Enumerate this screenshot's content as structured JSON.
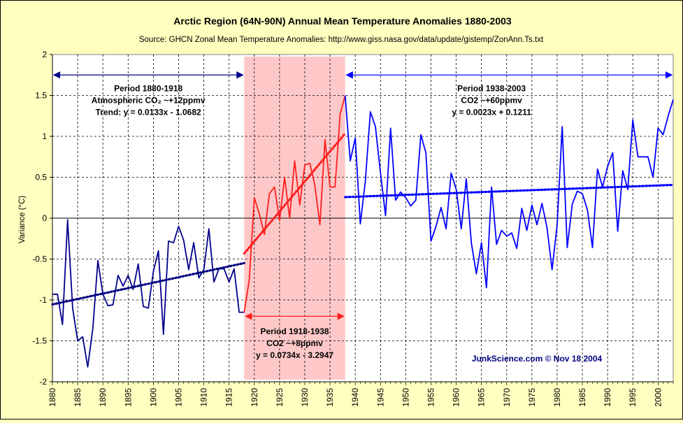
{
  "chart_data": {
    "type": "line",
    "title": "Arctic Region (64N-90N) Annual Mean Temperature Anomalies 1880-2003",
    "subtitle": "Source: GHCN Zonal Mean Temperature Anomalies: http://www.giss.nasa.gov/data/update/gistemp/ZonAnn.Ts.txt",
    "ylabel": "Variance (°C)",
    "xlabel": "",
    "xlim": [
      1880,
      2003
    ],
    "ylim": [
      -2,
      2
    ],
    "x_ticks": [
      1880,
      1885,
      1890,
      1895,
      1900,
      1905,
      1910,
      1915,
      1920,
      1925,
      1930,
      1935,
      1940,
      1945,
      1950,
      1955,
      1960,
      1965,
      1970,
      1975,
      1980,
      1985,
      1990,
      1995,
      2000
    ],
    "y_ticks": [
      -2,
      -1.5,
      -1,
      -0.5,
      0,
      0.5,
      1,
      1.5,
      2
    ],
    "y_tick_labels": [
      "-2",
      "-1.5",
      "-1",
      "-0.5",
      "0",
      "0.5",
      "1",
      "1.5",
      "2"
    ],
    "grid": true,
    "highlight_period": {
      "start": 1918,
      "end": 1938,
      "color": "#ffc8c8"
    },
    "series": [
      {
        "color": "#00008b",
        "x": [
          1880,
          1881,
          1882,
          1883,
          1884,
          1885,
          1886,
          1887,
          1888,
          1889,
          1890,
          1891,
          1892,
          1893,
          1894,
          1895,
          1896,
          1897,
          1898,
          1899,
          1900,
          1901,
          1902,
          1903,
          1904,
          1905,
          1906,
          1907,
          1908,
          1909,
          1910,
          1911,
          1912,
          1913,
          1914,
          1915,
          1916,
          1917,
          1918
        ],
        "y": [
          -0.93,
          -0.93,
          -1.3,
          -0.02,
          -1.1,
          -1.5,
          -1.45,
          -1.82,
          -1.35,
          -0.52,
          -0.93,
          -1.07,
          -1.06,
          -0.7,
          -0.83,
          -0.7,
          -0.87,
          -0.56,
          -1.08,
          -1.1,
          -0.65,
          -0.4,
          -1.42,
          -0.28,
          -0.3,
          -0.1,
          -0.27,
          -0.63,
          -0.3,
          -0.73,
          -0.63,
          -0.13,
          -0.78,
          -0.62,
          -0.62,
          -0.78,
          -0.62,
          -1.15,
          -1.15
        ]
      },
      {
        "color": "#ff2020",
        "x": [
          1918,
          1919,
          1920,
          1921,
          1922,
          1923,
          1924,
          1925,
          1926,
          1927,
          1928,
          1929,
          1930,
          1931,
          1932,
          1933,
          1934,
          1935,
          1936,
          1937,
          1938
        ],
        "y": [
          -1.15,
          -0.75,
          0.25,
          0.05,
          -0.2,
          0.3,
          0.38,
          -0.03,
          0.5,
          0.0,
          0.7,
          0.16,
          0.65,
          0.67,
          0.4,
          -0.08,
          0.96,
          0.38,
          0.38,
          1.27,
          1.5
        ]
      },
      {
        "color": "#0000ff",
        "x": [
          1938,
          1939,
          1940,
          1941,
          1942,
          1943,
          1944,
          1945,
          1946,
          1947,
          1948,
          1949,
          1950,
          1951,
          1952,
          1953,
          1954,
          1955,
          1956,
          1957,
          1958,
          1959,
          1960,
          1961,
          1962,
          1963,
          1964,
          1965,
          1966,
          1967,
          1968,
          1969,
          1970,
          1971,
          1972,
          1973,
          1974,
          1975,
          1976,
          1977,
          1978,
          1979,
          1980,
          1981,
          1982,
          1983,
          1984,
          1985,
          1986,
          1987,
          1988,
          1989,
          1990,
          1991,
          1992,
          1993,
          1994,
          1995,
          1996,
          1997,
          1998,
          1999,
          2000,
          2001,
          2002,
          2003
        ],
        "y": [
          1.5,
          0.7,
          0.98,
          -0.07,
          0.45,
          1.3,
          1.12,
          0.55,
          0.03,
          1.1,
          0.22,
          0.32,
          0.25,
          0.15,
          0.22,
          1.02,
          0.8,
          -0.28,
          -0.1,
          0.13,
          -0.13,
          0.55,
          0.35,
          -0.13,
          0.48,
          -0.3,
          -0.68,
          -0.3,
          -0.85,
          0.38,
          -0.32,
          -0.15,
          -0.22,
          -0.18,
          -0.37,
          0.12,
          -0.15,
          0.16,
          -0.08,
          0.18,
          -0.12,
          -0.63,
          -0.08,
          1.12,
          -0.36,
          0.17,
          0.33,
          0.3,
          0.1,
          -0.36,
          0.6,
          0.38,
          0.63,
          0.8,
          -0.16,
          0.58,
          0.35,
          1.2,
          0.75,
          0.75,
          0.75,
          0.5,
          1.1,
          1.02,
          1.25,
          1.45
        ]
      }
    ],
    "trendlines": [
      {
        "period": "1880-1918",
        "slope": 0.0133,
        "intercept": -1.0682,
        "x_start": 1880,
        "x_end": 1918,
        "color": "#000080"
      },
      {
        "period": "1918-1938",
        "slope": 0.0734,
        "intercept": -3.2947,
        "x_start": 1918,
        "x_end": 1938,
        "color": "#ff2020"
      },
      {
        "period": "1938-2003",
        "slope": 0.0023,
        "intercept": 0.1211,
        "x_start": 1938,
        "x_end": 2003,
        "color": "#0000ff"
      }
    ],
    "annotations": [
      {
        "lines": [
          "Period 1880-1918",
          "Atmospheric CO₂ ~+12ppmv",
          "Trend: y = 0.0133x - 1.0682"
        ],
        "color": "#000000",
        "arrow_from": 1880,
        "arrow_to": 1918,
        "arrow_y": 1.75,
        "arrow_color": "#00008b",
        "text_x": 1899,
        "text_y": 1.55
      },
      {
        "lines": [
          "Period 1918-1938",
          "CO2 ~+8ppmv",
          "y = 0.0734x - 3.2947"
        ],
        "color": "#000000",
        "arrow_from": 1918,
        "arrow_to": 1938,
        "arrow_y": -1.2,
        "arrow_color": "#ff2020",
        "text_x": 1928,
        "text_y": -1.42
      },
      {
        "lines": [
          "Period 1938-2003",
          "CO2 ~+60ppmv",
          "y = 0.0023x + 0.1211"
        ],
        "color": "#000000",
        "arrow_from": 1938,
        "arrow_to": 2003,
        "arrow_y": 1.75,
        "arrow_color": "#0000ff",
        "text_x": 1967,
        "text_y": 1.55
      }
    ],
    "credit": "JunkScience.com © Nov 18 2004",
    "credit_color": "#000080",
    "credit_x": 1976,
    "credit_y": -1.75
  }
}
